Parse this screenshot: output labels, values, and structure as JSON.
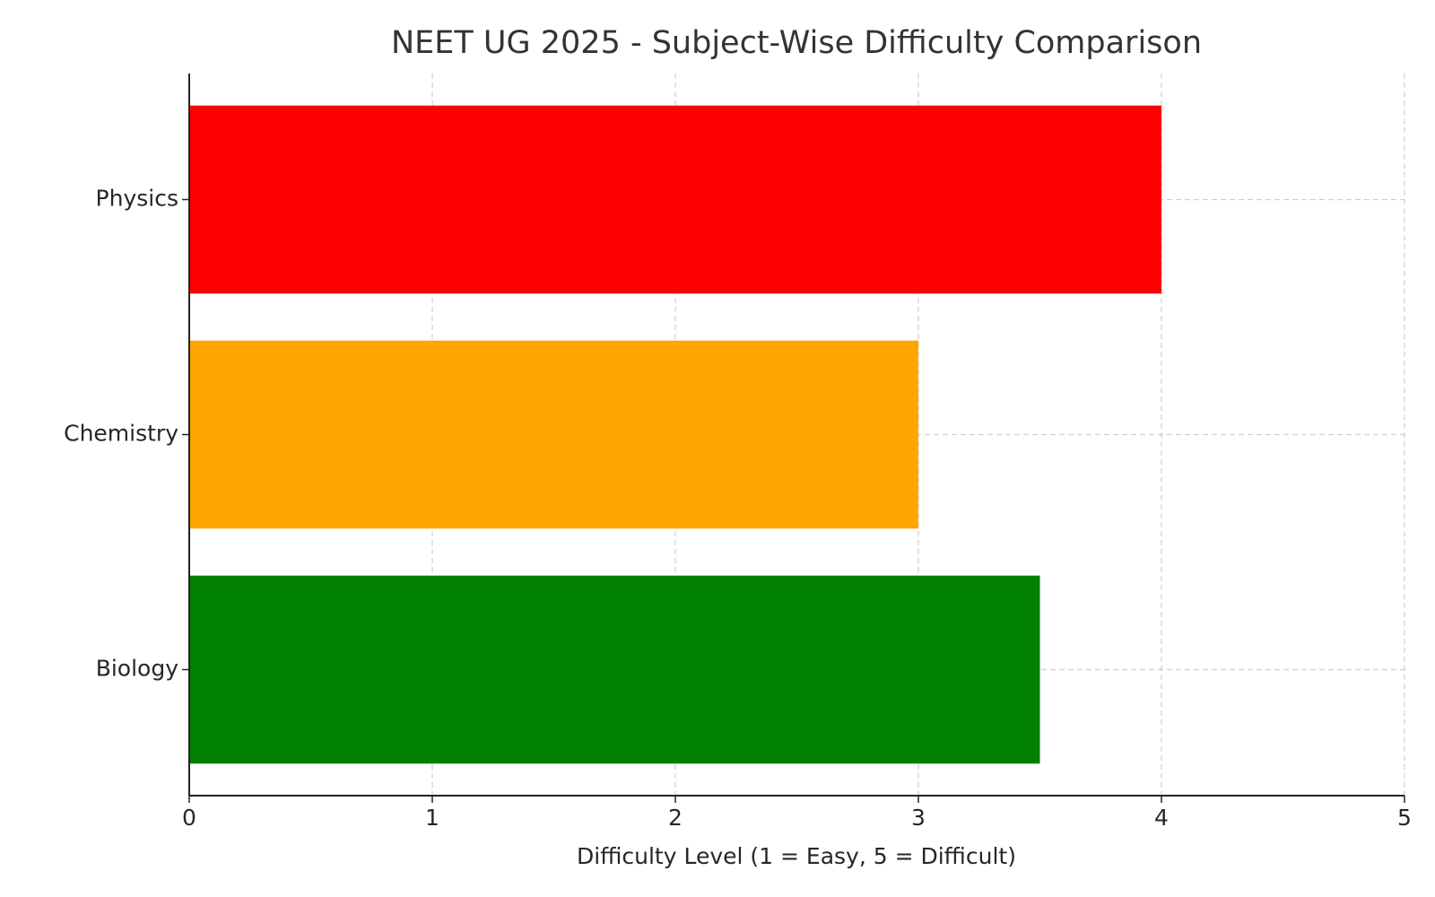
{
  "chart_data": {
    "type": "barh",
    "title": "NEET UG 2025 - Subject-Wise Difficulty Comparison",
    "xlabel": "Difficulty Level (1 = Easy, 5 = Difficult)",
    "categories": [
      "Physics",
      "Chemistry",
      "Biology"
    ],
    "values": [
      4,
      3,
      3.5
    ],
    "colors": [
      "#ff0000",
      "#ffa500",
      "#008000"
    ],
    "xlim": [
      0,
      5
    ],
    "xticks": [
      0,
      1,
      2,
      3,
      4,
      5
    ],
    "grid": true
  }
}
